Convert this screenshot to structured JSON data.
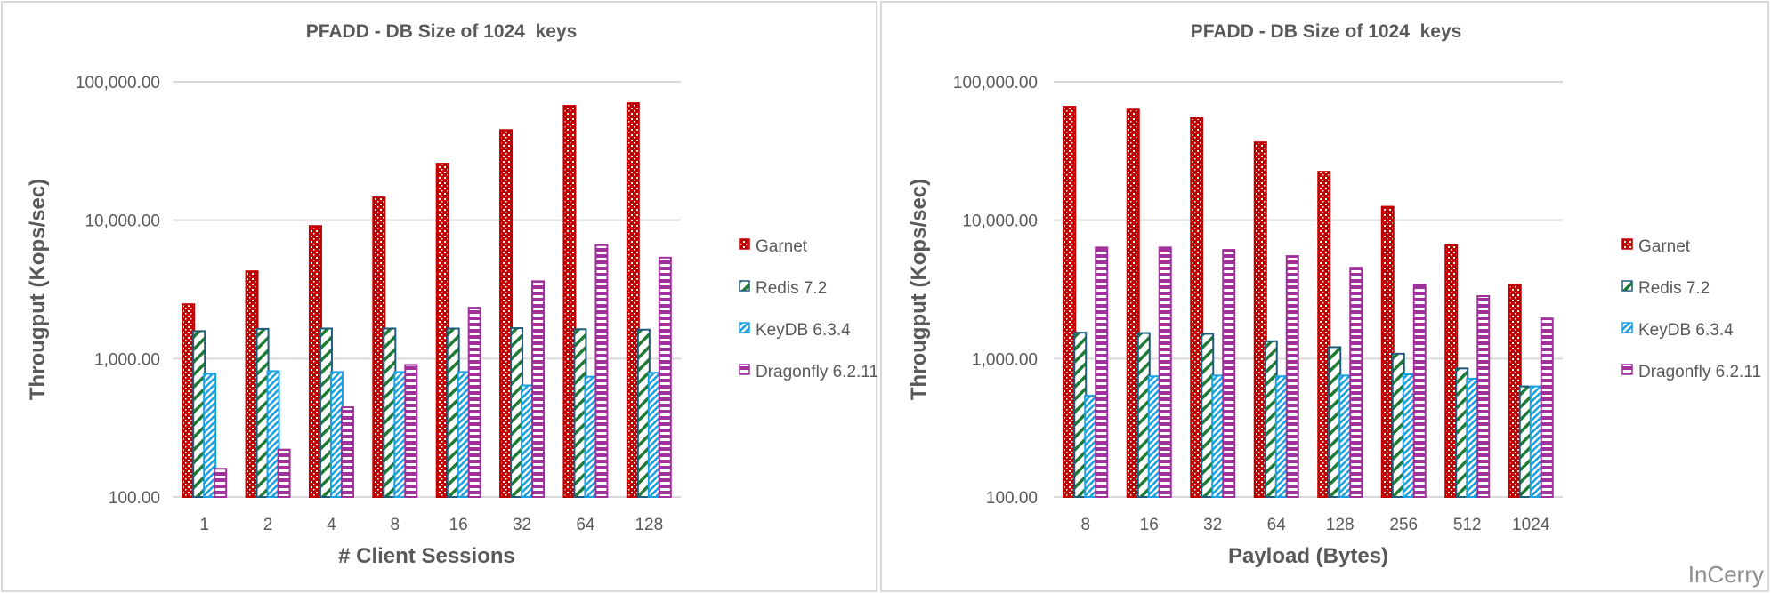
{
  "watermark": "InCerry",
  "colors": {
    "Garnet": "#C00000",
    "Redis 7.2": "#1E7B34",
    "Redis 7.2 outline": "#1F5C7A",
    "KeyDB 6.3.4": "#1BA1E2",
    "Dragonfly 6.2.11": "#A0309A",
    "grid": "#D9D9D9",
    "text": "#595959"
  },
  "chart_data": [
    {
      "type": "bar",
      "title": "PFADD - DB Size of 1024  keys",
      "xlabel": "# Client Sessions",
      "ylabel": "Througput (Kops/sec)",
      "yscale": "log",
      "ylim": [
        100,
        100000
      ],
      "yticks": [
        "100.00",
        "1,000.00",
        "10,000.00",
        "100,000.00"
      ],
      "grid": true,
      "legend": "right",
      "categories": [
        "1",
        "2",
        "4",
        "8",
        "16",
        "32",
        "64",
        "128"
      ],
      "series": [
        {
          "name": "Garnet",
          "pattern": "dots",
          "values": [
            2470,
            4270,
            9080,
            14600,
            25600,
            44800,
            67000,
            70000
          ]
        },
        {
          "name": "Redis 7.2",
          "pattern": "wide-diagonal",
          "values": [
            1580,
            1640,
            1650,
            1650,
            1650,
            1660,
            1630,
            1620
          ]
        },
        {
          "name": "KeyDB 6.3.4",
          "pattern": "narrow-diagonal",
          "values": [
            777,
            812,
            800,
            800,
            800,
            640,
            740,
            790
          ]
        },
        {
          "name": "Dragonfly 6.2.11",
          "pattern": "horizontal",
          "values": [
            160,
            220,
            445,
            900,
            2330,
            3620,
            6600,
            5360
          ]
        }
      ]
    },
    {
      "type": "bar",
      "title": "PFADD - DB Size of 1024  keys",
      "xlabel": "Payload (Bytes)",
      "ylabel": "Througput (Kops/sec)",
      "yscale": "log",
      "ylim": [
        100,
        100000
      ],
      "yticks": [
        "100.00",
        "1,000.00",
        "10,000.00",
        "100,000.00"
      ],
      "grid": true,
      "legend": "right",
      "categories": [
        "8",
        "16",
        "32",
        "64",
        "128",
        "256",
        "512",
        "1024"
      ],
      "series": [
        {
          "name": "Garnet",
          "pattern": "dots",
          "values": [
            66000,
            63000,
            54500,
            36500,
            22400,
            12500,
            6600,
            3400
          ]
        },
        {
          "name": "Redis 7.2",
          "pattern": "wide-diagonal",
          "values": [
            1540,
            1530,
            1510,
            1335,
            1210,
            1085,
            850,
            630
          ]
        },
        {
          "name": "KeyDB 6.3.4",
          "pattern": "narrow-diagonal",
          "values": [
            540,
            745,
            755,
            745,
            755,
            770,
            716,
            630
          ]
        },
        {
          "name": "Dragonfly 6.2.11",
          "pattern": "horizontal",
          "values": [
            6350,
            6350,
            6100,
            5500,
            4530,
            3400,
            2830,
            1950
          ]
        }
      ]
    }
  ]
}
